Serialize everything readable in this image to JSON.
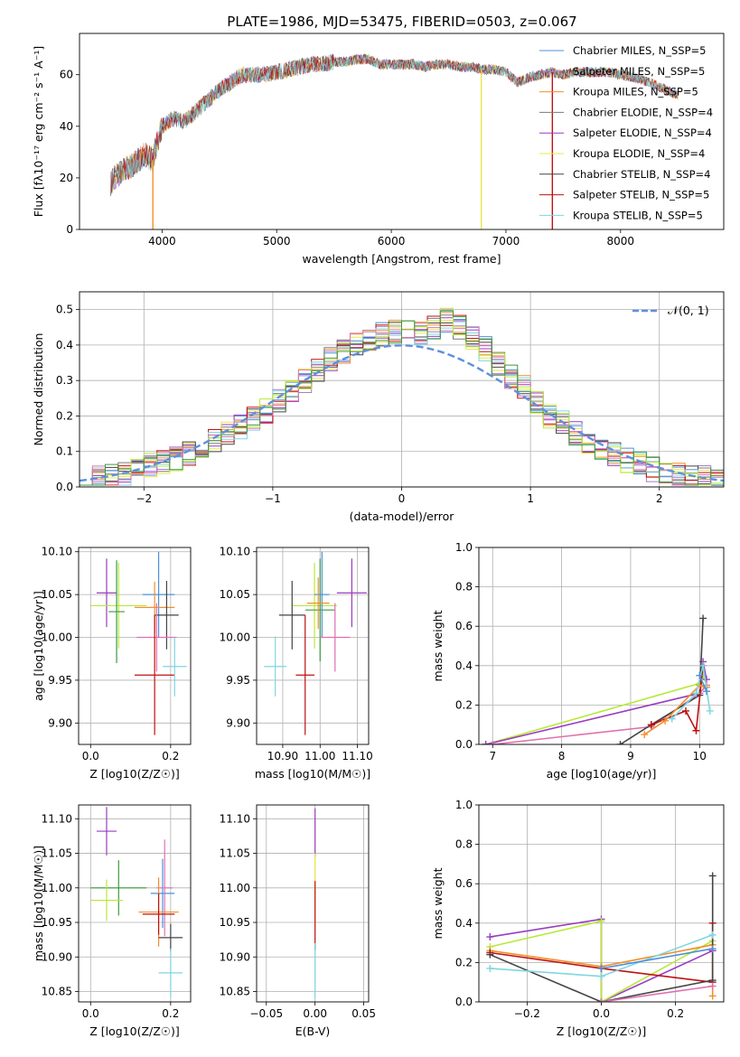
{
  "title": "PLATE=1986, MJD=53475, FIBERID=0503, z=0.067",
  "series_colors": [
    "#4c90d8",
    "#a87ec8",
    "#f0902a",
    "#7a7a7a",
    "#9a3cc0",
    "#e8e84a",
    "#444444",
    "#c01010",
    "#7fd6e0"
  ],
  "extra_colors": [
    "#e070b0",
    "#b8e838",
    "#3d9a3d"
  ],
  "chart_data": [
    {
      "id": "spectrum",
      "type": "line",
      "xlabel": "wavelength [Angstrom, rest frame]",
      "ylabel": "Flux [fλ10⁻¹⁷ erg cm⁻² s⁻¹ A⁻¹]",
      "xlim": [
        3280,
        8900
      ],
      "ylim": [
        0,
        76
      ],
      "xticks": [
        4000,
        5000,
        6000,
        7000,
        8000
      ],
      "yticks": [
        0,
        20,
        40,
        60
      ],
      "legend_position": "upper right",
      "series": [
        {
          "name": "Chabrier MILES, N_SSP=5"
        },
        {
          "name": "Salpeter MILES, N_SSP=5"
        },
        {
          "name": "Kroupa MILES, N_SSP=5"
        },
        {
          "name": "Chabrier ELODIE, N_SSP=4"
        },
        {
          "name": "Salpeter ELODIE, N_SSP=4"
        },
        {
          "name": "Kroupa ELODIE, N_SSP=4"
        },
        {
          "name": "Chabrier STELIB, N_SSP=4"
        },
        {
          "name": "Salpeter STELIB, N_SSP=5"
        },
        {
          "name": "Kroupa STELIB, N_SSP=5"
        }
      ],
      "continuum": [
        [
          3550,
          18
        ],
        [
          3650,
          23
        ],
        [
          3750,
          25
        ],
        [
          3850,
          29
        ],
        [
          3920,
          27
        ],
        [
          3960,
          34
        ],
        [
          4000,
          40
        ],
        [
          4100,
          43
        ],
        [
          4200,
          42
        ],
        [
          4300,
          46
        ],
        [
          4400,
          50
        ],
        [
          4500,
          54
        ],
        [
          4600,
          57
        ],
        [
          4700,
          60
        ],
        [
          4800,
          60
        ],
        [
          4900,
          60
        ],
        [
          5000,
          61
        ],
        [
          5100,
          62
        ],
        [
          5200,
          63
        ],
        [
          5300,
          64
        ],
        [
          5400,
          64
        ],
        [
          5500,
          65
        ],
        [
          5600,
          65
        ],
        [
          5700,
          66
        ],
        [
          5800,
          66
        ],
        [
          5900,
          64
        ],
        [
          6000,
          64
        ],
        [
          6100,
          64
        ],
        [
          6200,
          64
        ],
        [
          6300,
          63
        ],
        [
          6400,
          64
        ],
        [
          6500,
          64
        ],
        [
          6600,
          63
        ],
        [
          6700,
          63
        ],
        [
          6800,
          62
        ],
        [
          6900,
          62
        ],
        [
          7000,
          61
        ],
        [
          7100,
          57
        ],
        [
          7200,
          59
        ],
        [
          7300,
          60
        ],
        [
          7400,
          61
        ],
        [
          7500,
          60
        ],
        [
          7600,
          61
        ],
        [
          7700,
          61
        ],
        [
          7800,
          61
        ],
        [
          7900,
          61
        ],
        [
          8000,
          60
        ],
        [
          8100,
          59
        ],
        [
          8200,
          58
        ],
        [
          8300,
          56
        ],
        [
          8400,
          54
        ],
        [
          8500,
          52
        ]
      ],
      "drops": [
        {
          "x": 3920,
          "series": 2
        },
        {
          "x": 6785,
          "series": 5
        },
        {
          "x": 7405,
          "series": 7
        }
      ]
    },
    {
      "id": "residuals",
      "type": "histogram",
      "xlabel": "(data-model)/error",
      "ylabel": "Normed distribution",
      "xlim": [
        -2.5,
        2.5
      ],
      "ylim": [
        0,
        0.55
      ],
      "xticks": [
        -2,
        -1,
        0,
        1,
        2
      ],
      "yticks": [
        0.0,
        0.1,
        0.2,
        0.3,
        0.4,
        0.5
      ],
      "bin_width": 0.1,
      "legend": "𝒩(0, 1)",
      "reference": "normal(0,1)",
      "bin_centers": [
        -2.45,
        -2.35,
        -2.25,
        -2.15,
        -2.05,
        -1.95,
        -1.85,
        -1.75,
        -1.65,
        -1.55,
        -1.45,
        -1.35,
        -1.25,
        -1.15,
        -1.05,
        -0.95,
        -0.85,
        -0.75,
        -0.65,
        -0.55,
        -0.45,
        -0.35,
        -0.25,
        -0.15,
        -0.05,
        0.05,
        0.15,
        0.25,
        0.35,
        0.45,
        0.55,
        0.65,
        0.75,
        0.85,
        0.95,
        1.05,
        1.15,
        1.25,
        1.35,
        1.45,
        1.55,
        1.65,
        1.75,
        1.85,
        1.95,
        2.05,
        2.15,
        2.25,
        2.35,
        2.45
      ],
      "base_density": [
        0.02,
        0.025,
        0.03,
        0.035,
        0.045,
        0.06,
        0.07,
        0.08,
        0.095,
        0.11,
        0.13,
        0.15,
        0.17,
        0.19,
        0.215,
        0.245,
        0.275,
        0.3,
        0.33,
        0.36,
        0.38,
        0.4,
        0.42,
        0.43,
        0.44,
        0.44,
        0.43,
        0.45,
        0.47,
        0.45,
        0.42,
        0.39,
        0.35,
        0.31,
        0.28,
        0.24,
        0.2,
        0.18,
        0.15,
        0.12,
        0.1,
        0.09,
        0.075,
        0.065,
        0.05,
        0.04,
        0.035,
        0.03,
        0.025,
        0.02
      ]
    },
    {
      "id": "age_vs_Z",
      "type": "errorbar",
      "xlabel": "Z [log10(Z/Z☉)]",
      "ylabel": "age  [log10(age/yr)]",
      "xlim": [
        -0.03,
        0.25
      ],
      "ylim": [
        9.875,
        10.105
      ],
      "xticks": [
        0.0,
        0.2
      ],
      "yticks": [
        9.9,
        9.95,
        10.0,
        10.05,
        10.1
      ],
      "points": [
        {
          "x": 0.04,
          "y": 10.052,
          "xerr": 0.025,
          "yerr": 0.04,
          "color": "#9a3cc0"
        },
        {
          "x": 0.07,
          "y": 10.037,
          "xerr": 0.07,
          "yerr": 0.05,
          "color": "#b8e838"
        },
        {
          "x": 0.065,
          "y": 10.03,
          "xerr": 0.02,
          "yerr": 0.06,
          "color": "#3d9a3d"
        },
        {
          "x": 0.17,
          "y": 10.05,
          "xerr": 0.04,
          "yerr": 0.05,
          "color": "#4c90d8"
        },
        {
          "x": 0.16,
          "y": 10.035,
          "xerr": 0.05,
          "yerr": 0.03,
          "color": "#f0902a"
        },
        {
          "x": 0.19,
          "y": 10.026,
          "xerr": 0.03,
          "yerr": 0.04,
          "color": "#444444"
        },
        {
          "x": 0.165,
          "y": 10.0,
          "xerr": 0.05,
          "yerr": 0.04,
          "color": "#e070b0"
        },
        {
          "x": 0.16,
          "y": 9.956,
          "xerr": 0.05,
          "yerr": 0.07,
          "color": "#c01010"
        },
        {
          "x": 0.21,
          "y": 9.966,
          "xerr": 0.03,
          "yerr": 0.035,
          "color": "#7fd6e0"
        }
      ]
    },
    {
      "id": "age_vs_mass",
      "type": "errorbar",
      "xlabel": "mass [log10(M/M☉)]",
      "ylabel": "",
      "xlim": [
        10.83,
        11.13
      ],
      "ylim": [
        9.875,
        10.105
      ],
      "xticks": [
        10.9,
        11.0,
        11.1
      ],
      "yticks": [
        9.9,
        9.95,
        10.0,
        10.05,
        10.1
      ],
      "points": [
        {
          "x": 11.085,
          "y": 10.052,
          "xerr": 0.04,
          "yerr": 0.04,
          "color": "#9a3cc0"
        },
        {
          "x": 10.985,
          "y": 10.037,
          "xerr": 0.06,
          "yerr": 0.05,
          "color": "#b8e838"
        },
        {
          "x": 11.0,
          "y": 10.032,
          "xerr": 0.04,
          "yerr": 0.06,
          "color": "#3d9a3d"
        },
        {
          "x": 11.005,
          "y": 10.05,
          "xerr": 0.02,
          "yerr": 0.05,
          "color": "#4c90d8"
        },
        {
          "x": 10.995,
          "y": 10.04,
          "xerr": 0.03,
          "yerr": 0.03,
          "color": "#f0902a"
        },
        {
          "x": 10.925,
          "y": 10.026,
          "xerr": 0.035,
          "yerr": 0.04,
          "color": "#444444"
        },
        {
          "x": 11.04,
          "y": 10.0,
          "xerr": 0.04,
          "yerr": 0.04,
          "color": "#e070b0"
        },
        {
          "x": 10.96,
          "y": 9.956,
          "xerr": 0.025,
          "yerr": 0.07,
          "color": "#c01010"
        },
        {
          "x": 10.88,
          "y": 9.966,
          "xerr": 0.03,
          "yerr": 0.035,
          "color": "#7fd6e0"
        }
      ]
    },
    {
      "id": "weight_vs_age",
      "type": "line",
      "xlabel": "age  [log10(age/yr)]",
      "ylabel": "mass weight",
      "xlim": [
        6.8,
        10.35
      ],
      "ylim": [
        0,
        1.0
      ],
      "xticks": [
        7,
        8,
        9,
        10
      ],
      "yticks": [
        0.0,
        0.2,
        0.4,
        0.6,
        0.8,
        1.0
      ],
      "series": [
        {
          "color": "#b8e838",
          "points": [
            [
              6.9,
              0.0
            ],
            [
              10.0,
              0.31
            ],
            [
              10.05,
              0.35
            ],
            [
              10.1,
              0.3
            ]
          ]
        },
        {
          "color": "#9a3cc0",
          "points": [
            [
              6.9,
              0.0
            ],
            [
              10.0,
              0.26
            ],
            [
              10.05,
              0.42
            ],
            [
              10.1,
              0.33
            ]
          ]
        },
        {
          "color": "#e070b0",
          "points": [
            [
              7.0,
              0.0
            ],
            [
              9.3,
              0.09
            ],
            [
              10.0,
              0.26
            ],
            [
              10.1,
              0.3
            ]
          ]
        },
        {
          "color": "#444444",
          "points": [
            [
              8.85,
              0.0
            ],
            [
              9.3,
              0.1
            ],
            [
              10.0,
              0.25
            ],
            [
              10.05,
              0.64
            ]
          ]
        },
        {
          "color": "#c01010",
          "points": [
            [
              9.3,
              0.1
            ],
            [
              9.8,
              0.17
            ],
            [
              9.95,
              0.07
            ],
            [
              10.05,
              0.4
            ]
          ]
        },
        {
          "color": "#f0902a",
          "points": [
            [
              9.2,
              0.05
            ],
            [
              9.5,
              0.12
            ],
            [
              10.0,
              0.3
            ],
            [
              10.1,
              0.29
            ]
          ]
        },
        {
          "color": "#7fd6e0",
          "points": [
            [
              9.6,
              0.13
            ],
            [
              9.95,
              0.26
            ],
            [
              10.05,
              0.4
            ],
            [
              10.15,
              0.17
            ]
          ]
        },
        {
          "color": "#4c90d8",
          "points": [
            [
              10.0,
              0.35
            ],
            [
              10.1,
              0.27
            ]
          ]
        }
      ]
    },
    {
      "id": "mass_vs_Z",
      "type": "errorbar",
      "xlabel": "Z [log10(Z/Z☉)]",
      "ylabel": "mass [log10(M/M☉)]",
      "xlim": [
        -0.03,
        0.25
      ],
      "ylim": [
        10.835,
        11.12
      ],
      "xticks": [
        0.0,
        0.2
      ],
      "yticks": [
        10.85,
        10.9,
        10.95,
        11.0,
        11.05,
        11.1
      ],
      "points": [
        {
          "x": 0.04,
          "y": 11.082,
          "xerr": 0.025,
          "yerr": 0.035,
          "color": "#9a3cc0"
        },
        {
          "x": 0.07,
          "y": 11.0,
          "xerr": 0.07,
          "yerr": 0.04,
          "color": "#3d9a3d"
        },
        {
          "x": 0.04,
          "y": 10.982,
          "xerr": 0.04,
          "yerr": 0.03,
          "color": "#b8e838"
        },
        {
          "x": 0.18,
          "y": 10.992,
          "xerr": 0.03,
          "yerr": 0.05,
          "color": "#4c90d8"
        },
        {
          "x": 0.185,
          "y": 11.0,
          "xerr": 0.02,
          "yerr": 0.07,
          "color": "#e070b0"
        },
        {
          "x": 0.17,
          "y": 10.965,
          "xerr": 0.05,
          "yerr": 0.05,
          "color": "#f0902a"
        },
        {
          "x": 0.17,
          "y": 10.962,
          "xerr": 0.04,
          "yerr": 0.03,
          "color": "#c01010"
        },
        {
          "x": 0.2,
          "y": 10.928,
          "xerr": 0.03,
          "yerr": 0.02,
          "color": "#444444"
        },
        {
          "x": 0.2,
          "y": 10.877,
          "xerr": 0.03,
          "yerr": 0.035,
          "color": "#7fd6e0"
        }
      ]
    },
    {
      "id": "mass_vs_EBV",
      "type": "errorbar",
      "xlabel": "E(B-V)",
      "ylabel": "",
      "xlim": [
        -0.06,
        0.055
      ],
      "ylim": [
        10.835,
        11.12
      ],
      "xticks": [
        -0.05,
        0.0,
        0.05
      ],
      "yticks": [
        10.85,
        10.9,
        10.95,
        11.0,
        11.05,
        11.1
      ],
      "points": [
        {
          "x": 0.0,
          "y": 11.08,
          "xerr": 0,
          "yerr": 0.035,
          "color": "#9a3cc0"
        },
        {
          "x": 0.0,
          "y": 11.0,
          "xerr": 0,
          "yerr": 0.05,
          "color": "#e8e84a"
        },
        {
          "x": 0.0,
          "y": 10.96,
          "xerr": 0,
          "yerr": 0.05,
          "color": "#c01010"
        },
        {
          "x": 0.0,
          "y": 10.88,
          "xerr": 0,
          "yerr": 0.04,
          "color": "#7fd6e0"
        }
      ]
    },
    {
      "id": "weight_vs_Z",
      "type": "line",
      "xlabel": "Z [log10(Z/Z☉)]",
      "ylabel": "mass weight",
      "xlim": [
        -0.33,
        0.33
      ],
      "ylim": [
        0,
        1.0
      ],
      "xticks": [
        -0.2,
        0.0,
        0.2
      ],
      "yticks": [
        0.0,
        0.2,
        0.4,
        0.6,
        0.8,
        1.0
      ],
      "series": [
        {
          "color": "#9a3cc0",
          "points": [
            [
              -0.3,
              0.33
            ],
            [
              0.0,
              0.42
            ],
            [
              0.0,
              0.0
            ],
            [
              0.3,
              0.26
            ]
          ]
        },
        {
          "color": "#b8e838",
          "points": [
            [
              -0.3,
              0.28
            ],
            [
              0.0,
              0.41
            ],
            [
              0.0,
              0.0
            ],
            [
              0.3,
              0.31
            ]
          ]
        },
        {
          "color": "#f0902a",
          "points": [
            [
              -0.3,
              0.26
            ],
            [
              0.0,
              0.18
            ],
            [
              0.3,
              0.29
            ],
            [
              0.3,
              0.03
            ]
          ]
        },
        {
          "color": "#c01010",
          "points": [
            [
              -0.3,
              0.25
            ],
            [
              0.0,
              0.17
            ],
            [
              0.3,
              0.1
            ],
            [
              0.3,
              0.4
            ]
          ]
        },
        {
          "color": "#444444",
          "points": [
            [
              -0.3,
              0.24
            ],
            [
              0.0,
              0.0
            ],
            [
              0.3,
              0.11
            ],
            [
              0.3,
              0.64
            ]
          ]
        },
        {
          "color": "#7fd6e0",
          "points": [
            [
              -0.3,
              0.17
            ],
            [
              0.0,
              0.13
            ],
            [
              0.3,
              0.34
            ]
          ]
        },
        {
          "color": "#e070b0",
          "points": [
            [
              0.0,
              0.0
            ],
            [
              0.3,
              0.08
            ]
          ]
        },
        {
          "color": "#4c90d8",
          "points": [
            [
              0.0,
              0.17
            ],
            [
              0.3,
              0.27
            ]
          ]
        }
      ]
    }
  ]
}
